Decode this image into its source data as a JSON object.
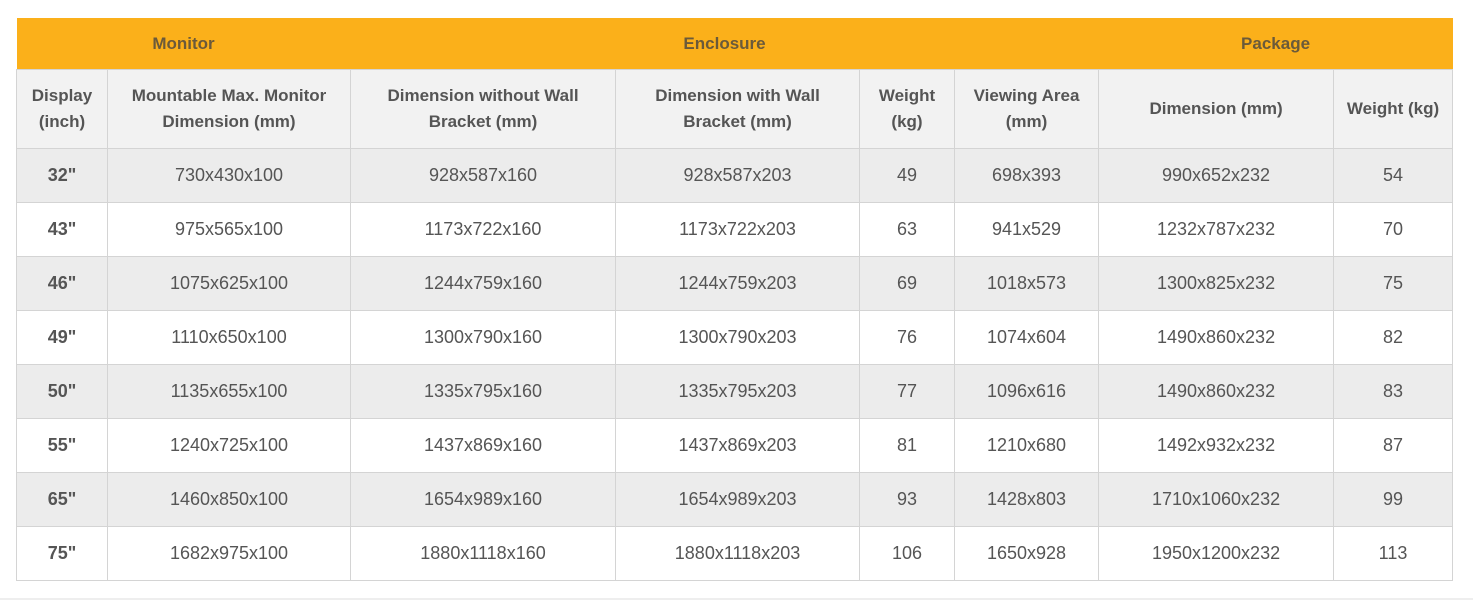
{
  "table": {
    "groups": [
      "Monitor",
      "Enclosure",
      "Package"
    ],
    "columns": [
      "Display (inch)",
      "Mountable Max. Monitor Dimension (mm)",
      "Dimension without Wall Bracket (mm)",
      "Dimension with Wall Bracket (mm)",
      "Weight (kg)",
      "Viewing Area (mm)",
      "Dimension (mm)",
      "Weight (kg)"
    ],
    "rows": [
      [
        "32\"",
        "730x430x100",
        "928x587x160",
        "928x587x203",
        "49",
        "698x393",
        "990x652x232",
        "54"
      ],
      [
        "43\"",
        "975x565x100",
        "1173x722x160",
        "1173x722x203",
        "63",
        "941x529",
        "1232x787x232",
        "70"
      ],
      [
        "46\"",
        "1075x625x100",
        "1244x759x160",
        "1244x759x203",
        "69",
        "1018x573",
        "1300x825x232",
        "75"
      ],
      [
        "49\"",
        "1110x650x100",
        "1300x790x160",
        "1300x790x203",
        "76",
        "1074x604",
        "1490x860x232",
        "82"
      ],
      [
        "50\"",
        "1135x655x100",
        "1335x795x160",
        "1335x795x203",
        "77",
        "1096x616",
        "1490x860x232",
        "83"
      ],
      [
        "55\"",
        "1240x725x100",
        "1437x869x160",
        "1437x869x203",
        "81",
        "1210x680",
        "1492x932x232",
        "87"
      ],
      [
        "65\"",
        "1460x850x100",
        "1654x989x160",
        "1654x989x203",
        "93",
        "1428x803",
        "1710x1060x232",
        "99"
      ],
      [
        "75\"",
        "1682x975x100",
        "1880x1118x160",
        "1880x1118x203",
        "106",
        "1650x928",
        "1950x1200x232",
        "113"
      ]
    ]
  }
}
